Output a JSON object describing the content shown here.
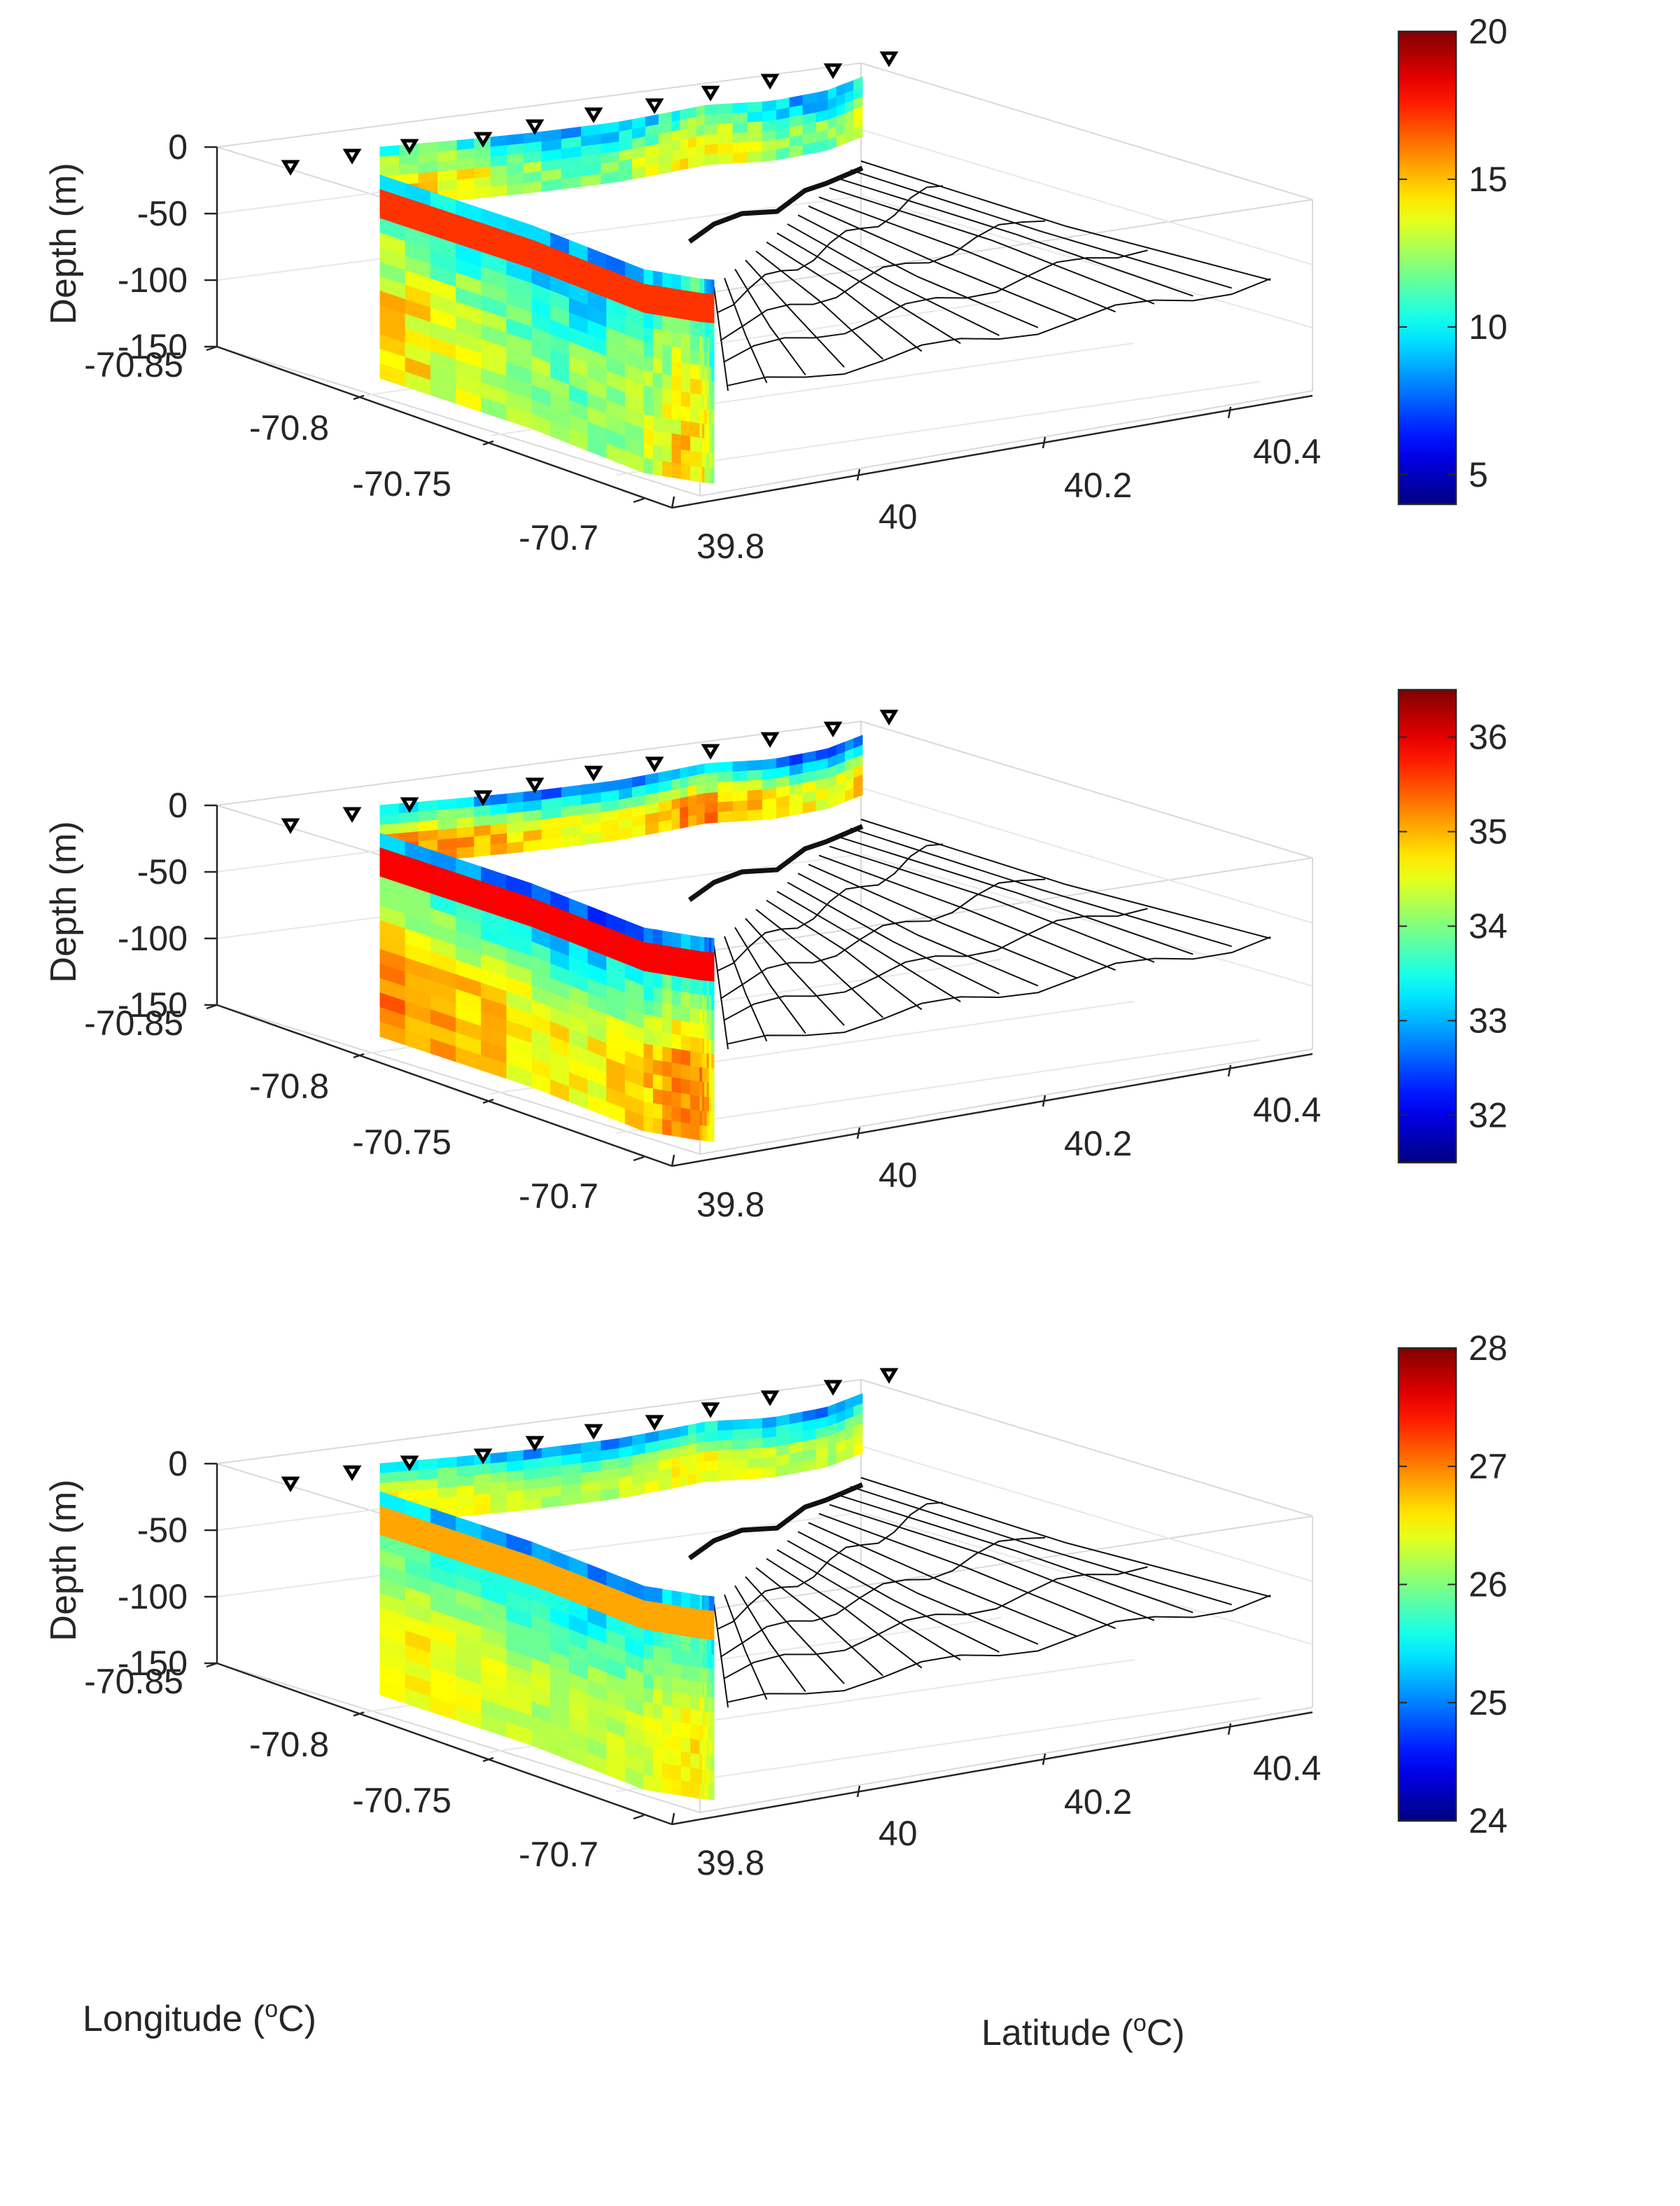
{
  "figure": {
    "xlabel_pre": "Longitude (",
    "xlabel_sup": "o",
    "xlabel_post": "C)",
    "ylabel_pre": "Latitude (",
    "ylabel_sup": "o",
    "ylabel_post": "C)"
  },
  "chart_data": [
    {
      "type": "3d-section",
      "zlabel": "Depth (m)",
      "x_ticks": [
        "-70.85",
        "-70.8",
        "-70.75",
        "-70.7"
      ],
      "y_ticks": [
        "39.8",
        "40",
        "40.2",
        "40.4"
      ],
      "z_ticks": [
        "0",
        "-50",
        "-100",
        "-150"
      ],
      "xlim": [
        -70.85,
        -70.7
      ],
      "ylim": [
        39.8,
        40.45
      ],
      "zlim": [
        -150,
        0
      ],
      "colormap": "jet",
      "clim": [
        4,
        20
      ],
      "colorbar_ticks": [
        "20",
        "15",
        "10",
        "5"
      ],
      "colorbar_tick_values": [
        20,
        15,
        10,
        5
      ],
      "station_marker_color": "#000000",
      "surface_range": {
        "min": 8,
        "max": 13
      },
      "deep_range": {
        "min": 12,
        "max": 16
      }
    },
    {
      "type": "3d-section",
      "zlabel": "Depth (m)",
      "x_ticks": [
        "-70.85",
        "-70.8",
        "-70.75",
        "-70.7"
      ],
      "y_ticks": [
        "39.8",
        "40",
        "40.2",
        "40.4"
      ],
      "z_ticks": [
        "0",
        "-50",
        "-100",
        "-150"
      ],
      "xlim": [
        -70.85,
        -70.7
      ],
      "ylim": [
        39.8,
        40.45
      ],
      "zlim": [
        -150,
        0
      ],
      "colormap": "jet",
      "clim": [
        31.5,
        36.5
      ],
      "colorbar_ticks": [
        "36",
        "35",
        "34",
        "33",
        "32"
      ],
      "colorbar_tick_values": [
        36,
        35,
        34,
        33,
        32
      ],
      "station_marker_color": "#000000",
      "surface_range": {
        "min": 32.3,
        "max": 33.6
      },
      "deep_range": {
        "min": 34.6,
        "max": 35.6
      }
    },
    {
      "type": "3d-section",
      "zlabel": "Depth (m)",
      "x_ticks": [
        "-70.85",
        "-70.8",
        "-70.75",
        "-70.7"
      ],
      "y_ticks": [
        "39.8",
        "40",
        "40.2",
        "40.4"
      ],
      "z_ticks": [
        "0",
        "-50",
        "-100",
        "-150"
      ],
      "xlim": [
        -70.85,
        -70.7
      ],
      "ylim": [
        39.8,
        40.45
      ],
      "zlim": [
        -150,
        0
      ],
      "colormap": "jet",
      "clim": [
        24,
        28
      ],
      "colorbar_ticks": [
        "28",
        "27",
        "26",
        "25",
        "24"
      ],
      "colorbar_tick_values": [
        28,
        27,
        26,
        25,
        24
      ],
      "station_marker_color": "#000000",
      "surface_range": {
        "min": 24.9,
        "max": 25.8
      },
      "deep_range": {
        "min": 26.2,
        "max": 26.7
      }
    }
  ]
}
